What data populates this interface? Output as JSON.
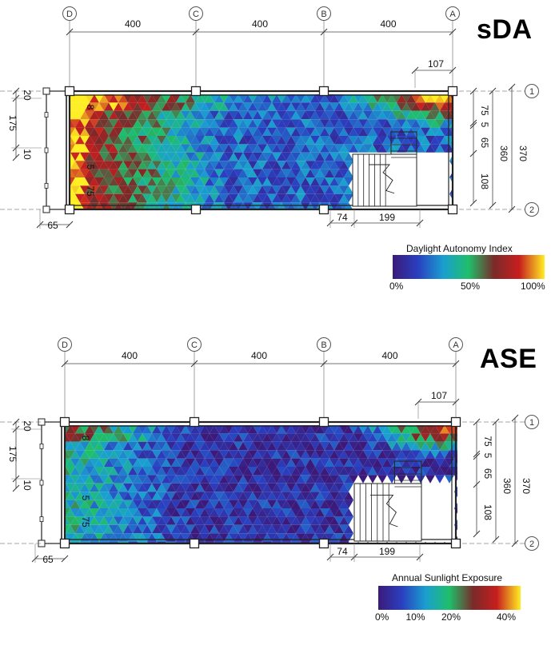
{
  "panels": [
    {
      "id": "sda",
      "title": "sDA",
      "legend": {
        "title": "Daylight Autonomy Index",
        "ticks": [
          "0%",
          "50%",
          "100%"
        ],
        "tick_fractions": [
          0.0,
          0.5,
          1.0
        ],
        "gradient": [
          "#3b1a7a",
          "#2a3fc0",
          "#1a9fd0",
          "#1fbf6a",
          "#7a2a2a",
          "#c81e1e",
          "#ffee22"
        ]
      }
    },
    {
      "id": "ase",
      "title": "ASE",
      "legend": {
        "title": "Annual Sunlight Exposure",
        "ticks": [
          "0%",
          "10%",
          "20%",
          "40%"
        ],
        "tick_fractions": [
          0.0,
          0.25,
          0.5,
          1.0
        ],
        "gradient": [
          "#3b1a7a",
          "#2a3fc0",
          "#1a9fd0",
          "#1fbf6a",
          "#7a2a2a",
          "#c81e1e",
          "#ffee22"
        ]
      }
    }
  ],
  "grid_axes": [
    "D",
    "C",
    "B",
    "A"
  ],
  "grid_rows": [
    "1",
    "2"
  ],
  "dimensions": {
    "top": [
      "400",
      "400",
      "400"
    ],
    "top_right": "107",
    "left": [
      "20",
      "175",
      "10"
    ],
    "bottom_left": "65",
    "bottom_right": [
      "74",
      "199"
    ],
    "right_inner": [
      "75",
      "5",
      "65",
      "108"
    ],
    "right_outer": [
      "360",
      "370"
    ],
    "interior_marks": [
      "8",
      "5",
      "75"
    ]
  }
}
